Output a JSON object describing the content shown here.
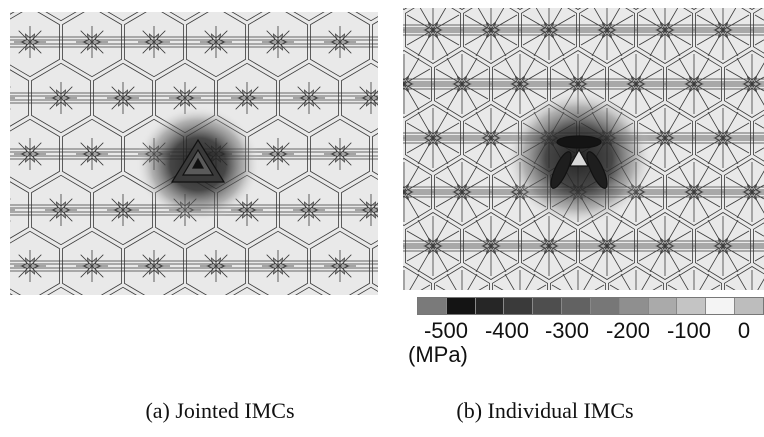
{
  "figure": {
    "panels": [
      {
        "id": "a",
        "caption": "(a) Jointed IMCs"
      },
      {
        "id": "b",
        "caption": "(b) Individual IMCs"
      }
    ],
    "colorbar": {
      "tick_labels": [
        "-500",
        "-400",
        "-300",
        "-200",
        "-100",
        "0"
      ],
      "unit": "(MPa)",
      "swatch_colors": [
        "#7a7a7a",
        "#141414",
        "#262626",
        "#3a3a3a",
        "#4e4e4e",
        "#626262",
        "#777777",
        "#8f8f8f",
        "#aaaaaa",
        "#c4c4c4",
        "#f4f4f4",
        "#bdbdbd"
      ]
    },
    "colors": {
      "background": "#e9e9e9",
      "mesh_line": "#3a3a3a",
      "stress_dark": "#1a1a1a"
    }
  }
}
